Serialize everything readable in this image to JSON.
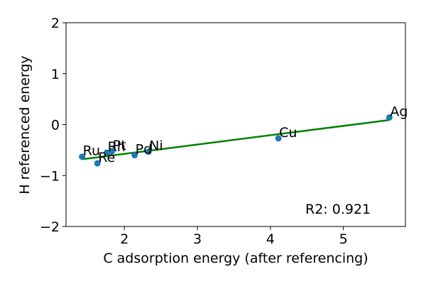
{
  "chart_data": {
    "type": "scatter",
    "xlabel": "C adsorption energy (after referencing)",
    "ylabel": "H referenced energy",
    "xlim": [
      1.2,
      5.85
    ],
    "ylim": [
      -2,
      2
    ],
    "xticks": [
      2,
      3,
      4,
      5
    ],
    "yticks": [
      -2,
      -1,
      0,
      1,
      2
    ],
    "xtick_labels": [
      "2",
      "3",
      "4",
      "5"
    ],
    "ytick_labels": [
      "−2",
      "−1",
      "0",
      "1",
      "2"
    ],
    "grid": false,
    "point_color": "#1f77b4",
    "fit_color": "#008000",
    "points": [
      {
        "label": "Ru",
        "x": 1.42,
        "y": -0.63
      },
      {
        "label": "Re",
        "x": 1.63,
        "y": -0.76
      },
      {
        "label": "Rh",
        "x": 1.76,
        "y": -0.55
      },
      {
        "label": "Pt",
        "x": 1.83,
        "y": -0.52
      },
      {
        "label": "Pd",
        "x": 2.14,
        "y": -0.6
      },
      {
        "label": "Ni",
        "x": 2.33,
        "y": -0.53
      },
      {
        "label": "Cu",
        "x": 4.11,
        "y": -0.27
      },
      {
        "label": "Ag",
        "x": 5.63,
        "y": 0.14
      }
    ],
    "fit_line": {
      "x": [
        1.42,
        5.63
      ],
      "y": [
        -0.68,
        0.09
      ]
    },
    "annotation": "R2: 0.921"
  }
}
